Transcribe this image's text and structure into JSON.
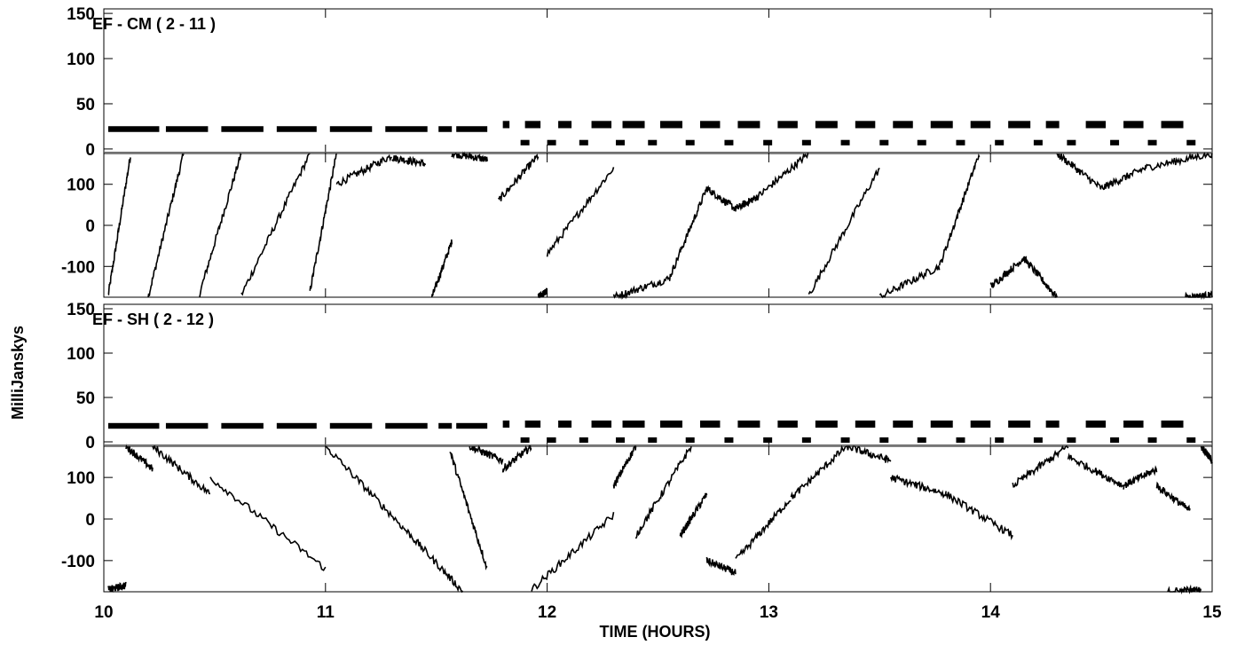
{
  "chart_data": {
    "type": "line",
    "xlabel": "TIME (HOURS)",
    "ylabel": "MilliJanskys",
    "xlim": [
      10.0,
      15.0
    ],
    "x_ticks": [
      "10",
      "11",
      "12",
      "13",
      "14",
      "15"
    ],
    "panels": [
      {
        "label": "EF - CM ( 2 - 11 )",
        "amplitude": {
          "ylim": [
            -5,
            155
          ],
          "y_ticks": [
            "150",
            "100",
            "50",
            "0"
          ],
          "main_series_level": 22,
          "late_series_level": 27,
          "late_low_level": 7,
          "scan_start_hours": [
            10.02,
            10.28,
            10.53,
            10.78,
            11.02,
            11.27,
            11.51,
            11.59,
            11.8,
            11.9,
            12.05,
            12.2,
            12.34,
            12.51,
            12.69,
            12.86,
            13.04,
            13.21,
            13.39,
            13.56,
            13.73,
            13.91,
            14.08,
            14.25,
            14.43,
            14.6,
            14.77
          ],
          "scan_end_hours": [
            10.25,
            10.47,
            10.72,
            10.96,
            11.21,
            11.46,
            11.57,
            11.73,
            11.83,
            11.97,
            12.11,
            12.29,
            12.44,
            12.61,
            12.78,
            12.96,
            13.13,
            13.31,
            13.48,
            13.65,
            13.83,
            14.0,
            14.18,
            14.31,
            14.52,
            14.69,
            14.87
          ]
        },
        "phase": {
          "ylim": [
            -175,
            175
          ],
          "y_ticks": [
            "100",
            "0",
            "-100"
          ]
        }
      },
      {
        "label": "EF - SH ( 2 - 12 )",
        "amplitude": {
          "ylim": [
            -5,
            155
          ],
          "y_ticks": [
            "150",
            "100",
            "50",
            "0"
          ],
          "main_series_level": 18,
          "late_series_level": 20,
          "late_low_level": 2
        },
        "phase": {
          "ylim": [
            -175,
            175
          ],
          "y_ticks": [
            "100",
            "0",
            "-100"
          ]
        }
      }
    ],
    "grid": false
  }
}
